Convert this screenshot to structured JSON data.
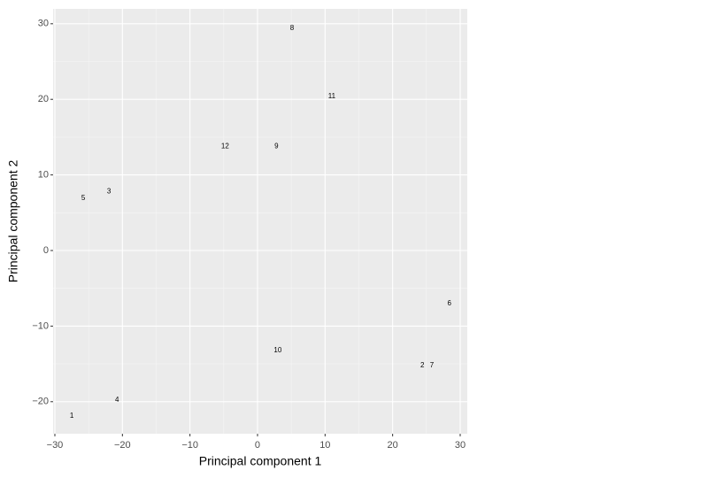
{
  "chart_data": {
    "type": "scatter",
    "x_label": "Principal component 1",
    "y_label": "Principal component 2",
    "labels": [
      "1",
      "2",
      "3",
      "4",
      "5",
      "6",
      "7",
      "8",
      "9",
      "10",
      "11",
      "12"
    ],
    "x": [
      -27.5,
      24.4,
      -22.0,
      -20.8,
      -25.8,
      28.4,
      25.8,
      5.1,
      2.8,
      3.0,
      11.0,
      -4.8
    ],
    "y": [
      -21.9,
      -15.2,
      7.8,
      -19.8,
      6.9,
      -7.0,
      -15.2,
      29.4,
      13.8,
      -13.2,
      20.4,
      13.8
    ],
    "xlim": [
      -30.26,
      31.05
    ],
    "ylim": [
      -24.24,
      31.97
    ],
    "xticks": [
      {
        "value": -30,
        "label": "−30"
      },
      {
        "value": -20,
        "label": "−20"
      },
      {
        "value": -10,
        "label": "−10"
      },
      0,
      10,
      20,
      30
    ],
    "yticks": [
      {
        "value": -20,
        "label": "−20"
      },
      {
        "value": -10,
        "label": "−10"
      },
      0,
      10,
      20,
      30
    ],
    "grid": true
  }
}
